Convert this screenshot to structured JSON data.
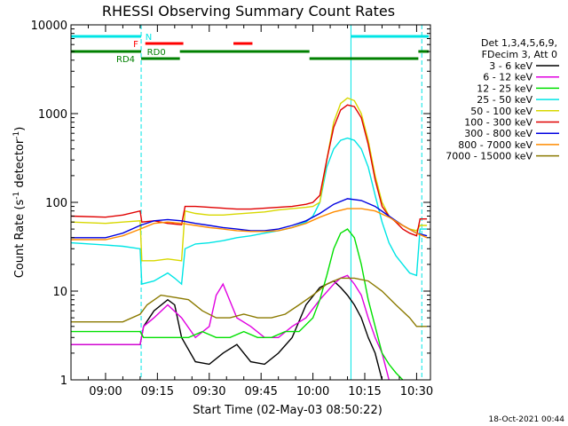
{
  "chart_data": {
    "type": "line",
    "title": "RHESSI Observing Summary Count Rates",
    "xlabel": "Start Time (02-May-03 08:50:22)",
    "ylabel": "Count Rate (s-1 detector-1)",
    "ylabel_parts": {
      "pre": "Count Rate (s",
      "sup1": "-1",
      "mid": " detector",
      "sup2": "-1",
      "post": ")"
    },
    "y_scale": "log",
    "ylim": [
      1,
      10000
    ],
    "xlim_minutes_of_day": [
      530,
      634
    ],
    "x_ticks": [
      {
        "label": "09:00",
        "minute": 540
      },
      {
        "label": "09:15",
        "minute": 555
      },
      {
        "label": "09:30",
        "minute": 570
      },
      {
        "label": "09:45",
        "minute": 585
      },
      {
        "label": "10:00",
        "minute": 600
      },
      {
        "label": "10:15",
        "minute": 615
      },
      {
        "label": "10:30",
        "minute": 630
      }
    ],
    "y_ticks": [
      {
        "label": "1",
        "value": 1
      },
      {
        "label": "10",
        "value": 10
      },
      {
        "label": "100",
        "value": 100
      },
      {
        "label": "1000",
        "value": 1000
      },
      {
        "label": "10000",
        "value": 10000
      }
    ],
    "legend_header": [
      "Det 1,3,4,5,6,9,",
      "FDecim 3, Att 0"
    ],
    "legend_placement": "right",
    "grid": false,
    "vertical_markers": [
      {
        "minute": 550.3,
        "color": "#00e5e5",
        "style": "dashed"
      },
      {
        "minute": 611.0,
        "color": "#00e5e5",
        "style": "solid"
      },
      {
        "minute": 631.5,
        "color": "#00e5e5",
        "style": "dashed"
      }
    ],
    "flag_bars": [
      {
        "label": "N",
        "color": "#00e5e5",
        "row": 1,
        "segments": [
          [
            530,
            550.3
          ],
          [
            611.0,
            633.5
          ]
        ]
      },
      {
        "label": "F",
        "color": "#ff0000",
        "row": 2,
        "segments": [
          [
            551.5,
            562.5
          ],
          [
            577.0,
            582.5
          ]
        ]
      },
      {
        "label": "RD0",
        "color": "#008000",
        "row": 3,
        "segments": [
          [
            530,
            550.3
          ],
          [
            561.5,
            599.0
          ],
          [
            630.5,
            633.5
          ]
        ]
      },
      {
        "label": "RD4",
        "color": "#008000",
        "row": 4,
        "segments": [
          [
            550.3,
            561.5
          ],
          [
            599.0,
            630.5
          ]
        ]
      }
    ],
    "series": [
      {
        "name": "3 - 6 keV",
        "color": "#000000",
        "x": [
          530,
          550,
          551,
          554,
          558,
          560,
          562,
          566,
          570,
          574,
          578,
          582,
          586,
          590,
          594,
          598,
          602,
          606,
          608,
          610,
          612,
          614,
          616,
          618,
          620
        ],
        "y": [
          2.5,
          2.5,
          4,
          6,
          8,
          7,
          3,
          1.6,
          1.5,
          2,
          2.5,
          1.6,
          1.5,
          2,
          3,
          7,
          11,
          13,
          11,
          9,
          7,
          5,
          3,
          2,
          1
        ]
      },
      {
        "name": "6 - 12 keV",
        "color": "#e000e0",
        "x": [
          530,
          550,
          551,
          554,
          558,
          562,
          566,
          570,
          572,
          574,
          578,
          582,
          586,
          590,
          594,
          598,
          602,
          606,
          608,
          610,
          612,
          614,
          616,
          618,
          620,
          622
        ],
        "y": [
          2.5,
          2.5,
          4,
          5,
          7,
          5,
          3,
          4,
          9,
          12,
          5,
          4,
          3,
          3,
          4,
          5,
          8,
          12,
          14,
          15,
          12,
          9,
          5,
          3,
          2,
          1
        ]
      },
      {
        "name": "12 - 25 keV",
        "color": "#00e000",
        "x": [
          530,
          550,
          551,
          556,
          560,
          564,
          568,
          572,
          576,
          580,
          584,
          588,
          592,
          596,
          600,
          602,
          604,
          606,
          608,
          610,
          612,
          614,
          616,
          618,
          620,
          622,
          624,
          626
        ],
        "y": [
          3.5,
          3.5,
          3,
          3,
          3,
          3,
          3.5,
          3,
          3,
          3.5,
          3,
          3,
          3.5,
          3.5,
          5,
          8,
          15,
          30,
          45,
          50,
          40,
          20,
          8,
          4,
          2,
          1.5,
          1.2,
          1
        ]
      },
      {
        "name": "25 - 50 keV",
        "color": "#00e5e5",
        "x": [
          530,
          540,
          545,
          550,
          550.5,
          554,
          558,
          560,
          562,
          563,
          566,
          570,
          574,
          578,
          582,
          586,
          590,
          594,
          598,
          600,
          602,
          604,
          606,
          608,
          610,
          612,
          614,
          616,
          618,
          620,
          622,
          624,
          626,
          628,
          630,
          631,
          633
        ],
        "y": [
          35,
          33,
          32,
          30,
          12,
          13,
          16,
          14,
          12,
          30,
          34,
          35,
          37,
          40,
          42,
          45,
          48,
          52,
          60,
          70,
          100,
          250,
          400,
          500,
          530,
          500,
          400,
          250,
          120,
          60,
          35,
          25,
          20,
          16,
          15,
          50,
          50
        ]
      },
      {
        "name": "50 - 100 keV",
        "color": "#d8d800",
        "x": [
          530,
          540,
          545,
          550,
          550.5,
          554,
          558,
          562,
          563,
          566,
          570,
          574,
          578,
          582,
          586,
          590,
          594,
          598,
          600,
          602,
          604,
          606,
          608,
          610,
          612,
          614,
          616,
          618,
          620,
          622,
          624,
          626,
          628,
          630,
          631,
          633
        ],
        "y": [
          60,
          58,
          60,
          62,
          22,
          22,
          23,
          22,
          80,
          75,
          72,
          72,
          74,
          76,
          78,
          82,
          85,
          88,
          90,
          100,
          300,
          800,
          1300,
          1500,
          1400,
          1000,
          500,
          200,
          100,
          70,
          60,
          55,
          50,
          48,
          55,
          55
        ]
      },
      {
        "name": "100 - 300 keV",
        "color": "#e00000",
        "x": [
          530,
          540,
          545,
          550,
          550.5,
          554,
          558,
          562,
          563,
          566,
          570,
          574,
          578,
          582,
          586,
          590,
          594,
          598,
          600,
          602,
          604,
          606,
          608,
          610,
          612,
          614,
          616,
          618,
          620,
          622,
          624,
          626,
          628,
          630,
          631,
          633
        ],
        "y": [
          70,
          68,
          72,
          80,
          60,
          62,
          58,
          56,
          90,
          90,
          88,
          86,
          84,
          84,
          86,
          88,
          90,
          95,
          100,
          120,
          300,
          700,
          1100,
          1250,
          1200,
          900,
          450,
          180,
          90,
          70,
          60,
          50,
          45,
          42,
          65,
          65
        ]
      },
      {
        "name": "300 - 800 keV",
        "color": "#0000e0",
        "x": [
          530,
          540,
          545,
          550,
          554,
          558,
          562,
          566,
          570,
          574,
          578,
          582,
          586,
          590,
          594,
          598,
          602,
          606,
          610,
          614,
          618,
          622,
          626,
          630,
          633
        ],
        "y": [
          40,
          40,
          45,
          55,
          62,
          64,
          62,
          58,
          55,
          52,
          50,
          48,
          48,
          50,
          55,
          62,
          75,
          95,
          110,
          105,
          90,
          70,
          55,
          45,
          42
        ]
      },
      {
        "name": "800 - 7000 keV",
        "color": "#ff8c00",
        "x": [
          530,
          540,
          545,
          550,
          554,
          558,
          562,
          566,
          570,
          574,
          578,
          582,
          586,
          590,
          594,
          598,
          602,
          606,
          610,
          614,
          618,
          622,
          626,
          630,
          633
        ],
        "y": [
          38,
          38,
          42,
          50,
          58,
          60,
          58,
          55,
          52,
          50,
          48,
          47,
          47,
          48,
          52,
          58,
          68,
          78,
          85,
          85,
          80,
          68,
          55,
          45,
          40
        ]
      },
      {
        "name": "7000 - 15000 keV",
        "color": "#8b7a00",
        "x": [
          530,
          545,
          550,
          552,
          556,
          560,
          564,
          568,
          572,
          576,
          580,
          584,
          588,
          592,
          596,
          600,
          604,
          608,
          612,
          616,
          620,
          624,
          628,
          630,
          633
        ],
        "y": [
          4.5,
          4.5,
          5.5,
          7,
          9,
          8.5,
          8,
          6,
          5,
          5,
          5.5,
          5,
          5,
          5.5,
          7,
          9,
          12,
          14,
          14,
          13,
          10,
          7,
          5,
          4,
          4
        ]
      }
    ]
  },
  "footer": {
    "timestamp": "18-Oct-2021 00:44"
  }
}
